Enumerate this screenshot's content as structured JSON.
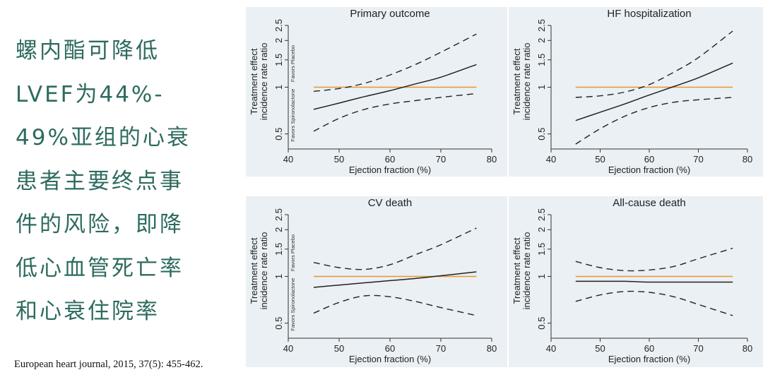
{
  "side_text": {
    "lines": [
      "螺内酯可降低",
      "LVEF为44%-",
      "49%亚组的心衰",
      "患者主要终点事",
      "件的风险，即降",
      "低心血管死亡率",
      "和心衰住院率"
    ]
  },
  "citation": "European heart journal, 2015, 37(5): 455-462.",
  "colors": {
    "panel_bg": "#eaf0f4",
    "reference_line": "#e8952f",
    "estimate_line": "#222222",
    "text_accent": "#2e6b5f"
  },
  "chart_data": [
    {
      "type": "line",
      "title": "Primary outcome",
      "xlabel": "Ejection fraction (%)",
      "ylabel": [
        "Treatment effect",
        "incidence rate ratio"
      ],
      "annotations": {
        "lower": "Favors Spironolactone",
        "upper": "Favors Placebo"
      },
      "xlim": [
        40,
        80
      ],
      "xticks": [
        "40",
        "50",
        "60",
        "70",
        "80"
      ],
      "ylim": [
        0.4,
        2.5
      ],
      "yscale": "log",
      "yticks": [
        {
          "v": 0.5,
          "label": "0.5"
        },
        {
          "v": 1,
          "label": "1"
        },
        {
          "v": 1.5,
          "label": "1.5"
        },
        {
          "v": 2,
          "label": "2"
        },
        {
          "v": 2.5,
          "label": "2.5"
        }
      ],
      "reference": 1.0,
      "series": [
        {
          "name": "estimate",
          "style": "solid",
          "x": [
            45,
            50,
            55,
            60,
            65,
            70,
            77
          ],
          "y": [
            0.72,
            0.79,
            0.87,
            0.95,
            1.05,
            1.16,
            1.4
          ]
        },
        {
          "name": "upper 95% CI",
          "style": "dashed",
          "x": [
            45,
            50,
            55,
            60,
            65,
            70,
            77
          ],
          "y": [
            0.94,
            0.98,
            1.06,
            1.2,
            1.4,
            1.68,
            2.2
          ]
        },
        {
          "name": "lower 95% CI",
          "style": "dashed",
          "x": [
            45,
            50,
            55,
            60,
            65,
            70,
            77
          ],
          "y": [
            0.52,
            0.63,
            0.72,
            0.78,
            0.82,
            0.86,
            0.91
          ]
        }
      ]
    },
    {
      "type": "line",
      "title": "HF hospitalization",
      "xlabel": "Ejection fraction (%)",
      "ylabel": [
        "Treatment effect",
        "incidence rate ratio"
      ],
      "annotations": {
        "lower": "",
        "upper": ""
      },
      "xlim": [
        40,
        80
      ],
      "xticks": [
        "40",
        "50",
        "60",
        "70",
        "80"
      ],
      "ylim": [
        0.4,
        2.5
      ],
      "yscale": "log",
      "yticks": [
        {
          "v": 0.5,
          "label": "0.5"
        },
        {
          "v": 1,
          "label": "1"
        },
        {
          "v": 1.5,
          "label": "1.5"
        },
        {
          "v": 2,
          "label": "2"
        },
        {
          "v": 2.5,
          "label": "2.5"
        }
      ],
      "reference": 1.0,
      "series": [
        {
          "name": "estimate",
          "style": "solid",
          "x": [
            45,
            50,
            55,
            60,
            65,
            70,
            77
          ],
          "y": [
            0.61,
            0.69,
            0.78,
            0.89,
            1.01,
            1.15,
            1.43
          ]
        },
        {
          "name": "upper 95% CI",
          "style": "dashed",
          "x": [
            45,
            50,
            55,
            60,
            65,
            70,
            77
          ],
          "y": [
            0.86,
            0.88,
            0.93,
            1.04,
            1.25,
            1.55,
            2.3
          ]
        },
        {
          "name": "lower 95% CI",
          "style": "dashed",
          "x": [
            45,
            50,
            55,
            60,
            65,
            70,
            77
          ],
          "y": [
            0.43,
            0.54,
            0.65,
            0.74,
            0.8,
            0.83,
            0.86
          ]
        }
      ]
    },
    {
      "type": "line",
      "title": "CV death",
      "xlabel": "Ejection fraction (%)",
      "ylabel": [
        "Treatment effect",
        "incidence rate ratio"
      ],
      "annotations": {
        "lower": "Favors Spironolactone",
        "upper": "Favors Placebo"
      },
      "xlim": [
        40,
        80
      ],
      "xticks": [
        "40",
        "50",
        "60",
        "70",
        "80"
      ],
      "ylim": [
        0.4,
        2.5
      ],
      "yscale": "log",
      "yticks": [
        {
          "v": 0.5,
          "label": "0.5"
        },
        {
          "v": 1,
          "label": "1"
        },
        {
          "v": 1.5,
          "label": "1.5"
        },
        {
          "v": 2,
          "label": "2"
        },
        {
          "v": 2.5,
          "label": "2.5"
        }
      ],
      "reference": 1.0,
      "series": [
        {
          "name": "estimate",
          "style": "solid",
          "x": [
            45,
            50,
            55,
            60,
            65,
            70,
            77
          ],
          "y": [
            0.85,
            0.88,
            0.91,
            0.94,
            0.97,
            1.01,
            1.07
          ]
        },
        {
          "name": "upper 95% CI",
          "style": "dashed",
          "x": [
            45,
            50,
            55,
            60,
            65,
            70,
            77
          ],
          "y": [
            1.23,
            1.14,
            1.11,
            1.19,
            1.38,
            1.6,
            2.05
          ]
        },
        {
          "name": "lower 95% CI",
          "style": "dashed",
          "x": [
            45,
            50,
            55,
            60,
            65,
            70,
            77
          ],
          "y": [
            0.58,
            0.68,
            0.75,
            0.74,
            0.69,
            0.63,
            0.56
          ]
        }
      ]
    },
    {
      "type": "line",
      "title": "All-cause death",
      "xlabel": "Ejection fraction (%)",
      "ylabel": [
        "Treatment effect",
        "incidence rate ratio"
      ],
      "annotations": {
        "lower": "",
        "upper": ""
      },
      "xlim": [
        40,
        80
      ],
      "xticks": [
        "40",
        "50",
        "60",
        "70",
        "80"
      ],
      "ylim": [
        0.4,
        2.5
      ],
      "yscale": "log",
      "yticks": [
        {
          "v": 0.5,
          "label": "0.5"
        },
        {
          "v": 1,
          "label": "1"
        },
        {
          "v": 1.5,
          "label": "1.5"
        },
        {
          "v": 2,
          "label": "2"
        },
        {
          "v": 2.5,
          "label": "2.5"
        }
      ],
      "reference": 1.0,
      "series": [
        {
          "name": "estimate",
          "style": "solid",
          "x": [
            45,
            50,
            55,
            60,
            65,
            70,
            77
          ],
          "y": [
            0.93,
            0.93,
            0.93,
            0.92,
            0.92,
            0.92,
            0.92
          ]
        },
        {
          "name": "upper 95% CI",
          "style": "dashed",
          "x": [
            45,
            50,
            55,
            60,
            65,
            70,
            77
          ],
          "y": [
            1.25,
            1.14,
            1.09,
            1.1,
            1.16,
            1.3,
            1.52
          ]
        },
        {
          "name": "lower 95% CI",
          "style": "dashed",
          "x": [
            45,
            50,
            55,
            60,
            65,
            70,
            77
          ],
          "y": [
            0.69,
            0.76,
            0.8,
            0.79,
            0.74,
            0.66,
            0.56
          ]
        }
      ]
    }
  ]
}
